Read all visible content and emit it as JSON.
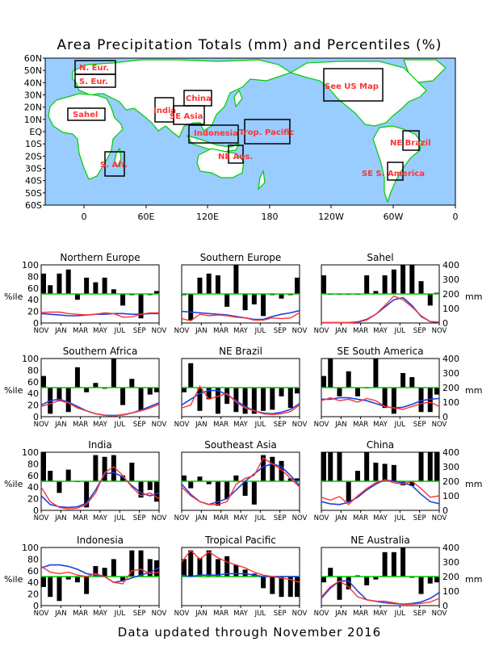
{
  "page": {
    "title": "Area Precipitation Totals (mm) and Percentiles (%)",
    "footer": "Data updated through November 2016"
  },
  "colors": {
    "ocean": "#99ccff",
    "land": "#ffffff",
    "coast": "#00cc00",
    "box": "#000000",
    "region_label": "#ff3333",
    "percentile_bar": "#000000",
    "ref_line": "#00cc00",
    "recent_line": "#ff3333",
    "normal_line": "#1f3fe0"
  },
  "map": {
    "lat_labels": [
      "60N",
      "50N",
      "40N",
      "30N",
      "20N",
      "10N",
      "EQ",
      "10S",
      "20S",
      "30S",
      "40S",
      "50S",
      "60S"
    ],
    "lon_labels": [
      "0",
      "60E",
      "120E",
      "180",
      "120W",
      "60W",
      "0"
    ],
    "regions": [
      {
        "label": "N. Eur."
      },
      {
        "label": "S. Eur."
      },
      {
        "label": "Sahel"
      },
      {
        "label": "S. Afr."
      },
      {
        "label": "India"
      },
      {
        "label": "China"
      },
      {
        "label": "SE Asia"
      },
      {
        "label": "Indonesia"
      },
      {
        "label": "NE Aus."
      },
      {
        "label": "Trop. Pacific"
      },
      {
        "label": "See US Map"
      },
      {
        "label": "NE Brazil"
      },
      {
        "label": "SE S. America"
      }
    ]
  },
  "axes": {
    "left_label": "%ile",
    "right_label": "mm",
    "left_ticks": [
      "0",
      "20",
      "40",
      "60",
      "80",
      "100"
    ],
    "right_ticks": [
      "0",
      "100",
      "200",
      "300",
      "400"
    ],
    "months": [
      "NOV",
      "JAN",
      "MAR",
      "MAY",
      "JUL",
      "SEP",
      "NOV"
    ]
  },
  "chart_data": [
    {
      "type": "bar+line",
      "title": "Northern Europe",
      "ylim_left": [
        0,
        100
      ],
      "ylim_right": [
        0,
        400
      ],
      "percentiles": [
        85,
        65,
        85,
        92,
        40,
        78,
        70,
        78,
        58,
        30,
        48,
        8,
        48,
        55
      ],
      "recent_mm": [
        72,
        75,
        75,
        65,
        60,
        55,
        60,
        70,
        65,
        40,
        42,
        60,
        70,
        70
      ],
      "normal_mm": [
        65,
        60,
        55,
        50,
        50,
        55,
        60,
        60,
        65,
        65,
        60,
        60,
        65,
        65
      ]
    },
    {
      "type": "bar+line",
      "title": "Southern Europe",
      "ylim_left": [
        0,
        100
      ],
      "ylim_right": [
        0,
        400
      ],
      "percentiles": [
        48,
        5,
        78,
        85,
        82,
        28,
        100,
        22,
        32,
        12,
        48,
        42,
        48,
        78
      ],
      "recent_mm": [
        30,
        15,
        60,
        50,
        55,
        50,
        40,
        35,
        20,
        20,
        35,
        30,
        35,
        70
      ],
      "normal_mm": [
        80,
        75,
        70,
        65,
        60,
        55,
        45,
        35,
        25,
        25,
        45,
        60,
        70,
        85
      ]
    },
    {
      "type": "bar+line",
      "title": "Sahel",
      "ylim_left": [
        0,
        100
      ],
      "ylim_right": [
        0,
        400
      ],
      "percentiles": [
        82,
        50,
        50,
        50,
        50,
        82,
        55,
        82,
        92,
        100,
        100,
        72,
        30,
        52
      ],
      "recent_mm": [
        2,
        2,
        2,
        2,
        5,
        20,
        60,
        120,
        185,
        160,
        110,
        50,
        10,
        5
      ],
      "normal_mm": [
        2,
        2,
        2,
        2,
        8,
        25,
        60,
        110,
        160,
        175,
        120,
        45,
        10,
        5
      ]
    },
    {
      "type": "bar+line",
      "title": "Southern Africa",
      "ylim_left": [
        0,
        100
      ],
      "ylim_right": [
        0,
        400
      ],
      "percentiles": [
        70,
        5,
        28,
        8,
        85,
        42,
        58,
        48,
        100,
        20,
        65,
        10,
        38,
        42
      ],
      "recent_mm": [
        70,
        90,
        110,
        95,
        60,
        40,
        20,
        10,
        5,
        15,
        25,
        40,
        60,
        85
      ],
      "normal_mm": [
        80,
        110,
        120,
        100,
        70,
        40,
        20,
        10,
        8,
        12,
        25,
        45,
        70,
        95
      ]
    },
    {
      "type": "bar+line",
      "title": "NE Brazil",
      "ylim_left": [
        0,
        100
      ],
      "ylim_right": [
        0,
        400
      ],
      "percentiles": [
        42,
        92,
        10,
        30,
        5,
        22,
        8,
        5,
        5,
        10,
        12,
        35,
        15,
        40
      ],
      "recent_mm": [
        60,
        80,
        210,
        120,
        140,
        160,
        100,
        60,
        40,
        20,
        15,
        20,
        35,
        80
      ],
      "normal_mm": [
        80,
        120,
        160,
        180,
        180,
        150,
        110,
        70,
        40,
        25,
        20,
        30,
        50,
        90
      ]
    },
    {
      "type": "bar+line",
      "title": "SE South America",
      "ylim_left": [
        0,
        100
      ],
      "ylim_right": [
        0,
        400
      ],
      "percentiles": [
        70,
        100,
        35,
        78,
        35,
        50,
        100,
        15,
        5,
        75,
        68,
        8,
        8,
        38
      ],
      "recent_mm": [
        110,
        130,
        110,
        120,
        100,
        125,
        110,
        70,
        60,
        50,
        70,
        90,
        100,
        70
      ],
      "normal_mm": [
        120,
        120,
        130,
        130,
        120,
        110,
        90,
        70,
        60,
        65,
        85,
        110,
        120,
        125
      ]
    },
    {
      "type": "bar+line",
      "title": "India",
      "ylim_left": [
        0,
        100
      ],
      "ylim_right": [
        0,
        400
      ],
      "percentiles": [
        100,
        68,
        30,
        70,
        50,
        5,
        95,
        92,
        95,
        60,
        82,
        22,
        35,
        15
      ],
      "recent_mm": [
        160,
        60,
        20,
        10,
        15,
        40,
        120,
        260,
        300,
        240,
        160,
        100,
        120,
        80
      ],
      "normal_mm": [
        100,
        40,
        25,
        20,
        25,
        50,
        140,
        250,
        260,
        230,
        170,
        120,
        100,
        120
      ]
    },
    {
      "type": "bar+line",
      "title": "Southeast Asia",
      "ylim_left": [
        0,
        100
      ],
      "ylim_right": [
        0,
        400
      ],
      "percentiles": [
        60,
        38,
        58,
        45,
        8,
        20,
        60,
        25,
        10,
        95,
        92,
        85,
        55,
        55
      ],
      "recent_mm": [
        160,
        100,
        60,
        40,
        40,
        60,
        180,
        220,
        240,
        360,
        320,
        280,
        220,
        160
      ],
      "normal_mm": [
        180,
        110,
        60,
        40,
        60,
        80,
        140,
        200,
        250,
        300,
        320,
        300,
        240,
        170
      ]
    },
    {
      "type": "bar+line",
      "title": "China",
      "ylim_left": [
        0,
        100
      ],
      "ylim_right": [
        0,
        400
      ],
      "percentiles": [
        100,
        100,
        100,
        15,
        68,
        100,
        82,
        80,
        78,
        43,
        42,
        100,
        100,
        100
      ],
      "recent_mm": [
        90,
        70,
        95,
        40,
        100,
        150,
        190,
        210,
        190,
        180,
        200,
        150,
        90,
        100
      ],
      "normal_mm": [
        60,
        45,
        40,
        55,
        90,
        140,
        180,
        210,
        200,
        190,
        170,
        110,
        60,
        45
      ]
    },
    {
      "type": "bar+line",
      "title": "Indonesia",
      "ylim_left": [
        0,
        100
      ],
      "ylim_right": [
        0,
        400
      ],
      "percentiles": [
        32,
        15,
        8,
        45,
        40,
        20,
        68,
        65,
        80,
        43,
        95,
        95,
        80,
        78
      ],
      "recent_mm": [
        270,
        230,
        220,
        230,
        210,
        200,
        220,
        200,
        160,
        150,
        240,
        250,
        220,
        230
      ],
      "normal_mm": [
        260,
        280,
        280,
        270,
        250,
        220,
        210,
        200,
        160,
        170,
        190,
        210,
        230,
        260
      ]
    },
    {
      "type": "bar+line",
      "title": "Tropical Pacific",
      "ylim_left": [
        0,
        100
      ],
      "ylim_right": [
        0,
        400
      ],
      "percentiles": [
        80,
        95,
        82,
        95,
        80,
        85,
        70,
        62,
        55,
        30,
        20,
        15,
        15,
        15
      ],
      "recent_mm": [
        300,
        380,
        320,
        370,
        330,
        300,
        280,
        260,
        230,
        210,
        200,
        190,
        180,
        160
      ],
      "normal_mm": [
        210,
        200,
        210,
        210,
        210,
        220,
        220,
        220,
        210,
        200,
        200,
        200,
        200,
        200
      ]
    },
    {
      "type": "bar+line",
      "title": "NE Australia",
      "ylim_left": [
        0,
        100
      ],
      "ylim_right": [
        0,
        400
      ],
      "percentiles": [
        40,
        65,
        10,
        28,
        52,
        35,
        45,
        92,
        92,
        100,
        48,
        20,
        38,
        40
      ],
      "recent_mm": [
        60,
        130,
        170,
        130,
        60,
        40,
        30,
        30,
        20,
        10,
        10,
        15,
        25,
        50
      ],
      "normal_mm": [
        50,
        120,
        170,
        170,
        100,
        40,
        30,
        20,
        15,
        10,
        15,
        25,
        50,
        90
      ]
    }
  ]
}
